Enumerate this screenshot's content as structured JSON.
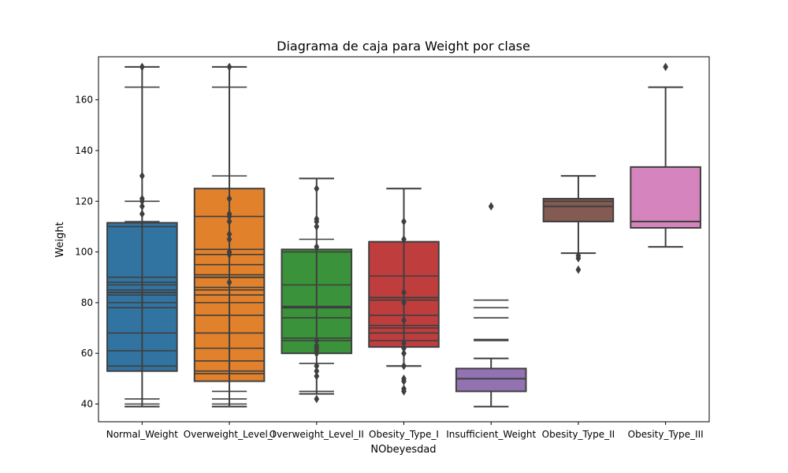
{
  "chart_data": {
    "type": "box",
    "title": "Diagrama de caja para Weight por clase",
    "xlabel": "NObeyesdad",
    "ylabel": "Weight",
    "ylim": [
      33,
      177
    ],
    "yticks": [
      40,
      60,
      80,
      100,
      120,
      140,
      160
    ],
    "grid": false,
    "categories": [
      "Normal_Weight",
      "Overweight_Level_I",
      "Overweight_Level_II",
      "Obesity_Type_I",
      "Insufficient_Weight",
      "Obesity_Type_II",
      "Obesity_Type_III"
    ],
    "boxes": [
      {
        "category": "Normal_Weight",
        "color": "#3274a1",
        "q1": 53,
        "median": 84,
        "q3": 111.5,
        "whisker_low": 39,
        "whisker_high": 173,
        "extra_lines": [
          39,
          40,
          42,
          55,
          61,
          68,
          78,
          80,
          83,
          85,
          87,
          88,
          90,
          110,
          112,
          120,
          165
        ],
        "outliers": [
          173,
          130,
          121,
          120,
          118,
          115
        ]
      },
      {
        "category": "Overweight_Level_I",
        "color": "#e1812c",
        "q1": 49,
        "median": 90,
        "q3": 125,
        "whisker_low": 39,
        "whisker_high": 173,
        "extra_lines": [
          39,
          40,
          42,
          45,
          52,
          53,
          57,
          62,
          68,
          75,
          80,
          83,
          85,
          86,
          91,
          95,
          99,
          101,
          114,
          130,
          165
        ],
        "outliers": [
          173,
          121,
          115,
          114,
          112,
          107,
          105,
          100,
          99,
          88
        ]
      },
      {
        "category": "Overweight_Level_II",
        "color": "#3a923a",
        "q1": 60,
        "median": 78,
        "q3": 101,
        "whisker_low": 44,
        "whisker_high": 129,
        "extra_lines": [
          44,
          45,
          56,
          65,
          66,
          74,
          78.5,
          87,
          100,
          105,
          129
        ],
        "outliers": [
          125,
          113,
          112,
          110,
          102,
          65,
          63,
          62,
          61,
          60,
          55,
          53,
          51,
          42
        ]
      },
      {
        "category": "Obesity_Type_I",
        "color": "#c03d3e",
        "q1": 62.5,
        "median": 82,
        "q3": 104,
        "whisker_low": 55,
        "whisker_high": 125,
        "extra_lines": [
          55,
          65,
          68,
          70,
          71,
          75,
          81,
          90.5,
          104,
          125
        ],
        "outliers": [
          112,
          105,
          84,
          80,
          73,
          64,
          62,
          60,
          55,
          50,
          49,
          46,
          45
        ]
      },
      {
        "category": "Insufficient_Weight",
        "color": "#9372b2",
        "q1": 45,
        "median": 50,
        "q3": 54,
        "whisker_low": 39,
        "whisker_high": 58,
        "extra_lines": [
          65,
          65.5,
          74,
          78,
          81
        ],
        "outliers": [
          118
        ]
      },
      {
        "category": "Obesity_Type_II",
        "color": "#845b53",
        "q1": 112,
        "median": 118,
        "q3": 121,
        "whisker_low": 99.5,
        "whisker_high": 130,
        "extra_lines": [
          120
        ],
        "outliers": [
          98.5,
          97.5,
          93
        ]
      },
      {
        "category": "Obesity_Type_III",
        "color": "#d684bd",
        "q1": 109.5,
        "median": 112,
        "q3": 133.5,
        "whisker_low": 102,
        "whisker_high": 165,
        "extra_lines": [],
        "outliers": [
          173
        ]
      }
    ]
  }
}
